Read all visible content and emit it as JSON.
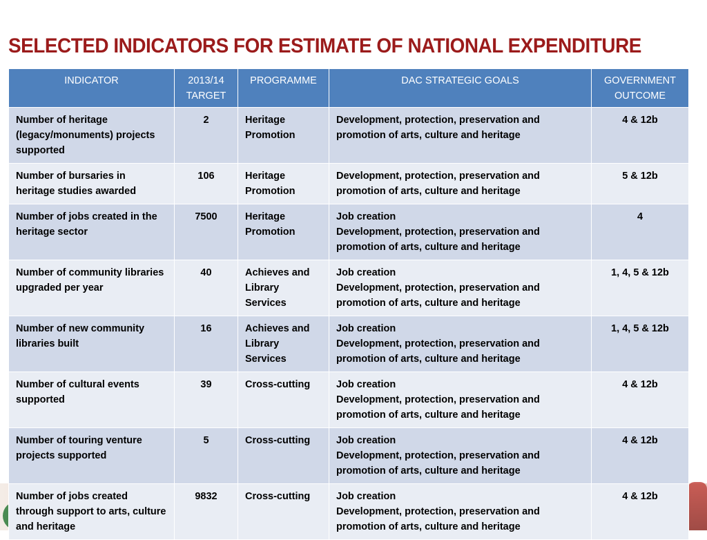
{
  "title": "SELECTED INDICATORS FOR ESTIMATE OF NATIONAL EXPENDITURE",
  "colors": {
    "title": "#9b1b1b",
    "header_bg": "#4f81bd",
    "row_odd": "#d0d8e8",
    "row_even": "#e9edf4"
  },
  "table": {
    "headers": {
      "indicator": "INDICATOR",
      "target": "2013/14 TARGET",
      "programme": "PROGRAMME",
      "goals": "DAC STRATEGIC GOALS",
      "outcome": "GOVERNMENT OUTCOME"
    },
    "rows": [
      {
        "indicator": "Number of heritage (legacy/monuments) projects supported",
        "target": "2",
        "programme": "Heritage Promotion",
        "goals": [
          "Development, protection, preservation and promotion of arts, culture and heritage"
        ],
        "outcome": "4 & 12b"
      },
      {
        "indicator": "Number of bursaries in heritage studies awarded",
        "target": "106",
        "programme": "Heritage Promotion",
        "goals": [
          "Development, protection, preservation and promotion of arts, culture and heritage"
        ],
        "outcome": "5 & 12b"
      },
      {
        "indicator": "Number of jobs created in the heritage sector",
        "target": "7500",
        "programme": "Heritage Promotion",
        "goals": [
          "Job creation",
          "Development, protection, preservation and promotion of arts, culture and heritage"
        ],
        "outcome": "4"
      },
      {
        "indicator": "Number of community libraries upgraded per year",
        "target": "40",
        "programme": "Achieves and Library Services",
        "goals": [
          "Job creation",
          "Development, protection, preservation and promotion of arts, culture and heritage"
        ],
        "outcome": "1, 4, 5 & 12b"
      },
      {
        "indicator": "Number of new community libraries built",
        "target": "16",
        "programme": "Achieves and Library Services",
        "goals": [
          "Job creation",
          "Development, protection, preservation and promotion of arts, culture and heritage"
        ],
        "outcome": "1, 4, 5 & 12b"
      },
      {
        "indicator": "Number of cultural events supported",
        "target": "39",
        "programme": "Cross-cutting",
        "goals": [
          "Job creation",
          "Development, protection, preservation and promotion of arts, culture and heritage"
        ],
        "outcome": "4 & 12b"
      },
      {
        "indicator": "Number of touring venture projects supported",
        "target": "5",
        "programme": "Cross-cutting",
        "goals": [
          "Job creation",
          "Development, protection, preservation and promotion of arts, culture and heritage"
        ],
        "outcome": "4 & 12b"
      },
      {
        "indicator": "Number of jobs created through support to arts, culture and heritage",
        "target": "9832",
        "programme": "Cross-cutting",
        "goals": [
          "Job creation",
          "Development, protection, preservation and promotion of arts, culture and heritage"
        ],
        "outcome": "4 & 12b"
      }
    ]
  }
}
